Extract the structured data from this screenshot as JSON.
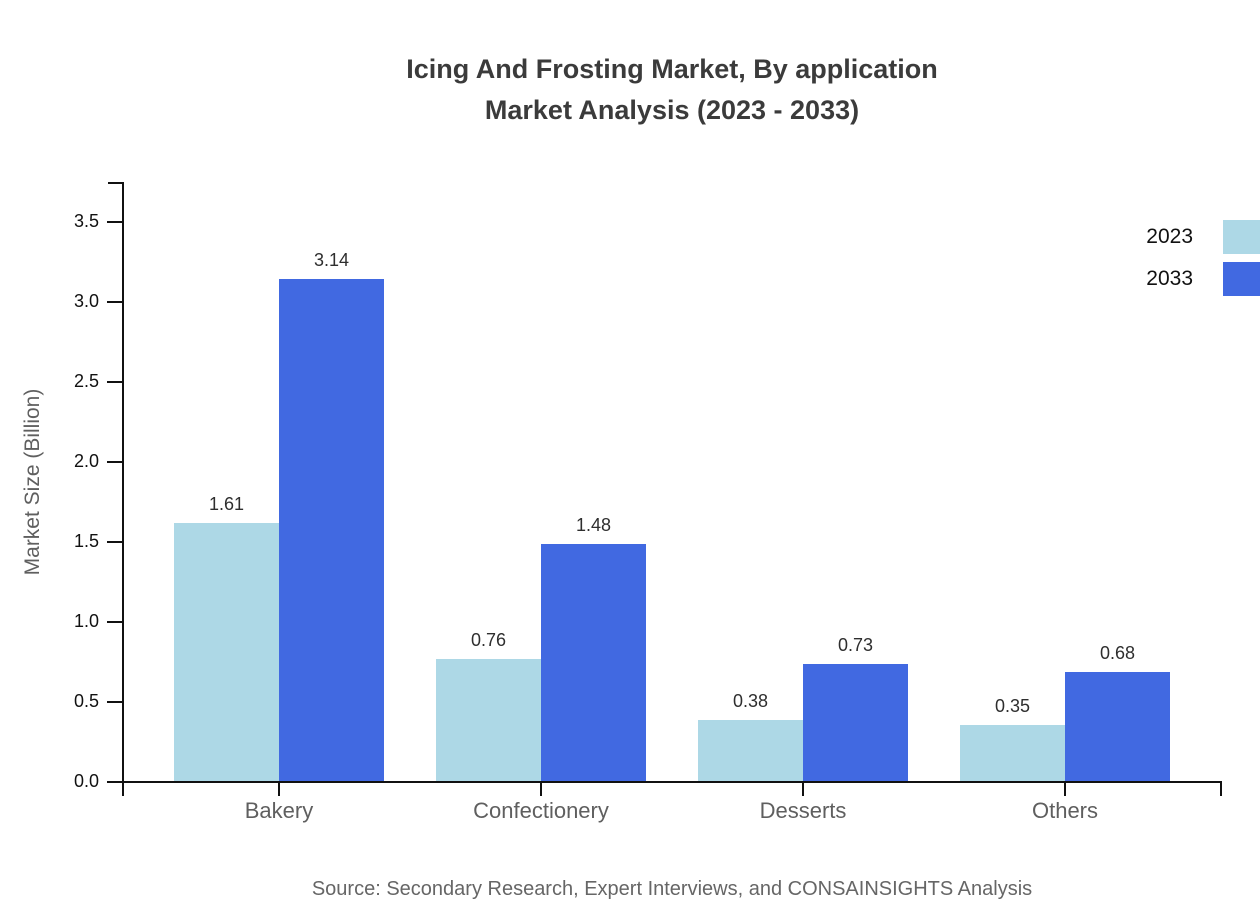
{
  "title": {
    "line1": "Icing And Frosting Market, By application",
    "line2": "Market Analysis (2023 - 2033)"
  },
  "source": "Source: Secondary Research, Expert Interviews, and CONSAINSIGHTS Analysis",
  "chart_data": {
    "type": "bar",
    "categories": [
      "Bakery",
      "Confectionery",
      "Desserts",
      "Others"
    ],
    "series": [
      {
        "name": "2023",
        "color": "#ADD8E6",
        "values": [
          1.61,
          0.76,
          0.38,
          0.35
        ]
      },
      {
        "name": "2033",
        "color": "#4169E1",
        "values": [
          3.14,
          1.48,
          0.73,
          0.68
        ]
      }
    ],
    "title": "Icing And Frosting Market, By application Market Analysis (2023 - 2033)",
    "xlabel": "",
    "ylabel": "Market Size (Billion)",
    "ylim": [
      0,
      3.75
    ],
    "yticks": [
      0.0,
      0.5,
      1.0,
      1.5,
      2.0,
      2.5,
      3.0,
      3.5
    ],
    "grid": false,
    "legend_position": "upper right",
    "value_labels": true
  }
}
